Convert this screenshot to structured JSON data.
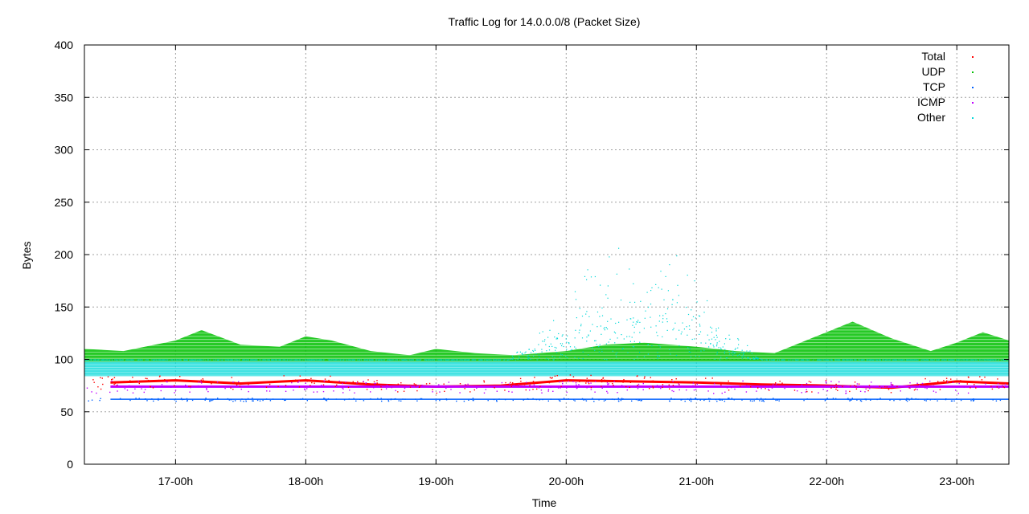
{
  "chart_data": {
    "type": "scatter",
    "title": "Traffic Log for 14.0.0.0/8 (Packet Size)",
    "xlabel": "Time",
    "ylabel": "Bytes",
    "ylim": [
      0,
      400
    ],
    "xlim": [
      16.3,
      23.4
    ],
    "yticks": [
      0,
      50,
      100,
      150,
      200,
      250,
      300,
      350,
      400
    ],
    "xticks": [
      {
        "value": 17,
        "label": "17-00h"
      },
      {
        "value": 18,
        "label": "18-00h"
      },
      {
        "value": 19,
        "label": "19-00h"
      },
      {
        "value": 20,
        "label": "20-00h"
      },
      {
        "value": 21,
        "label": "21-00h"
      },
      {
        "value": 22,
        "label": "22-00h"
      },
      {
        "value": 23,
        "label": "23-00h"
      }
    ],
    "grid": true,
    "legend_position": "top-right",
    "series": [
      {
        "name": "Total",
        "color": "#ff0000",
        "points": [
          [
            16.5,
            78
          ],
          [
            17.0,
            80
          ],
          [
            17.5,
            77
          ],
          [
            18.0,
            80
          ],
          [
            18.5,
            76
          ],
          [
            19.0,
            74
          ],
          [
            19.5,
            75
          ],
          [
            20.0,
            80
          ],
          [
            20.5,
            79
          ],
          [
            21.0,
            78
          ],
          [
            21.5,
            76
          ],
          [
            22.0,
            75
          ],
          [
            22.5,
            73
          ],
          [
            23.0,
            79
          ],
          [
            23.4,
            77
          ]
        ]
      },
      {
        "name": "UDP",
        "color": "#00c000",
        "points": [
          [
            16.3,
            110
          ],
          [
            16.6,
            108
          ],
          [
            17.0,
            118
          ],
          [
            17.2,
            128
          ],
          [
            17.5,
            114
          ],
          [
            17.8,
            112
          ],
          [
            18.0,
            122
          ],
          [
            18.2,
            118
          ],
          [
            18.5,
            108
          ],
          [
            18.8,
            104
          ],
          [
            19.0,
            110
          ],
          [
            19.3,
            106
          ],
          [
            19.6,
            104
          ],
          [
            20.0,
            108
          ],
          [
            20.3,
            114
          ],
          [
            20.6,
            116
          ],
          [
            21.0,
            112
          ],
          [
            21.3,
            108
          ],
          [
            21.6,
            106
          ],
          [
            22.0,
            126
          ],
          [
            22.2,
            136
          ],
          [
            22.5,
            120
          ],
          [
            22.8,
            108
          ],
          [
            23.0,
            116
          ],
          [
            23.2,
            126
          ],
          [
            23.4,
            118
          ]
        ]
      },
      {
        "name": "TCP",
        "color": "#0060ff",
        "points": [
          [
            16.5,
            62
          ],
          [
            17.0,
            62
          ],
          [
            17.5,
            62
          ],
          [
            18.0,
            62
          ],
          [
            18.5,
            62
          ],
          [
            19.0,
            62
          ],
          [
            19.5,
            62
          ],
          [
            20.0,
            62
          ],
          [
            20.5,
            62
          ],
          [
            21.0,
            62
          ],
          [
            21.5,
            62
          ],
          [
            22.0,
            62
          ],
          [
            22.5,
            62
          ],
          [
            23.0,
            62
          ],
          [
            23.4,
            62
          ]
        ]
      },
      {
        "name": "ICMP",
        "color": "#c000ff",
        "points": [
          [
            16.5,
            74
          ],
          [
            17.0,
            74
          ],
          [
            17.5,
            74
          ],
          [
            18.0,
            74
          ],
          [
            18.5,
            74
          ],
          [
            19.0,
            74
          ],
          [
            19.5,
            74
          ],
          [
            20.0,
            74
          ],
          [
            20.5,
            74
          ],
          [
            21.0,
            74
          ],
          [
            21.5,
            74
          ],
          [
            22.0,
            74
          ],
          [
            22.5,
            74
          ],
          [
            23.0,
            74
          ],
          [
            23.4,
            74
          ]
        ]
      },
      {
        "name": "Other",
        "color": "#00d8d8",
        "points": [
          [
            16.5,
            90
          ],
          [
            17.0,
            92
          ],
          [
            17.5,
            90
          ],
          [
            18.0,
            92
          ],
          [
            18.5,
            90
          ],
          [
            19.0,
            90
          ],
          [
            19.5,
            92
          ],
          [
            19.7,
            120
          ],
          [
            20.0,
            150
          ],
          [
            20.2,
            180
          ],
          [
            20.4,
            200
          ],
          [
            20.6,
            160
          ],
          [
            20.8,
            190
          ],
          [
            21.0,
            170
          ],
          [
            21.2,
            130
          ],
          [
            21.5,
            100
          ],
          [
            22.0,
            92
          ],
          [
            22.5,
            90
          ],
          [
            23.0,
            92
          ],
          [
            23.4,
            90
          ]
        ]
      }
    ]
  }
}
